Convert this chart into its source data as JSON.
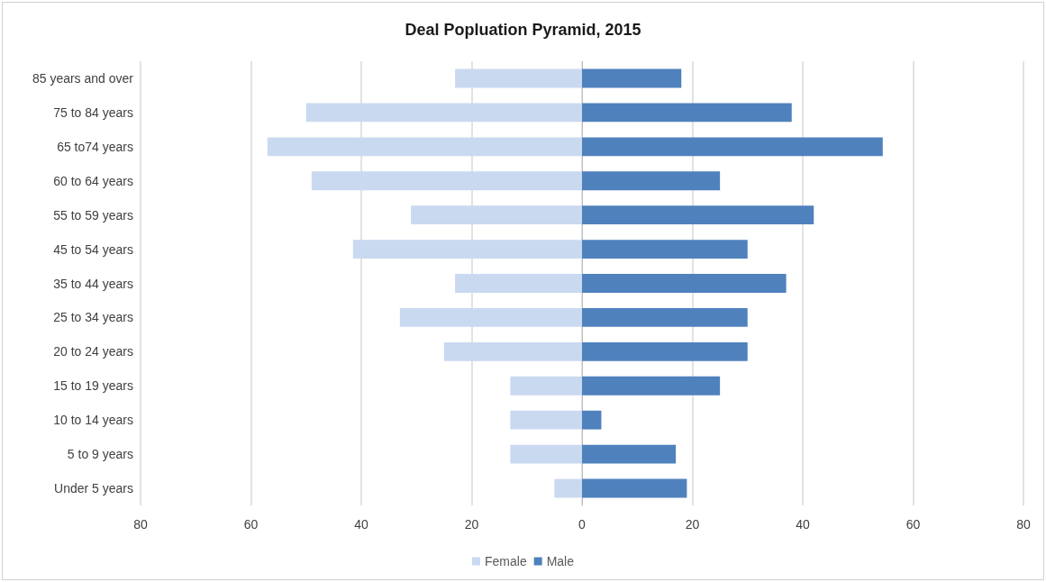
{
  "chart_data": {
    "type": "bar",
    "orientation": "horizontal",
    "stacked": true,
    "title": "Deal Popluation Pyramid, 2015",
    "categories": [
      "85 years and over",
      "75 to 84 years",
      "65 to74 years",
      "60 to 64 years",
      "55 to 59 years",
      "45 to 54 years",
      "35 to 44 years",
      "25 to 34 years",
      "20 to 24 years",
      "15 to 19 years",
      "10 to 14 years",
      "5 to 9 years",
      "Under 5 years"
    ],
    "series": [
      {
        "name": "Female",
        "color": "#c9d9f0",
        "values": [
          -23,
          -50,
          -57,
          -49,
          -31,
          -41.5,
          -23,
          -33,
          -25,
          -13,
          -13,
          -13,
          -5
        ]
      },
      {
        "name": "Male",
        "color": "#4f81bd",
        "values": [
          18,
          38,
          54.5,
          25,
          42,
          30,
          37,
          30,
          30,
          25,
          3.5,
          17,
          19
        ]
      }
    ],
    "xlim": [
      -80,
      80
    ],
    "xticks": [
      {
        "value": -80,
        "label": "80"
      },
      {
        "value": -60,
        "label": "60"
      },
      {
        "value": -40,
        "label": "40"
      },
      {
        "value": -20,
        "label": "20"
      },
      0,
      20,
      40,
      60,
      80
    ],
    "grid": "x",
    "legend": "bottom"
  }
}
